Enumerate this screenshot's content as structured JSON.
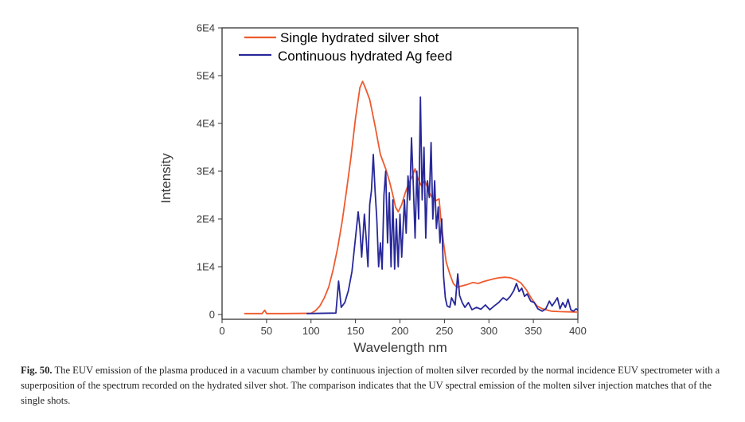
{
  "chart_data": {
    "type": "line",
    "xlabel": "Wavelength nm",
    "ylabel": "Intensity",
    "xlim": [
      0,
      400
    ],
    "ylim": [
      -1000,
      60000
    ],
    "x_ticks": [
      "0",
      "50",
      "100",
      "150",
      "200",
      "250",
      "300",
      "350",
      "400"
    ],
    "y_ticks": [
      "0",
      "1E4",
      "2E4",
      "3E4",
      "4E4",
      "5E4",
      "6E4"
    ],
    "grid": false,
    "legend_position": "top-left",
    "series": [
      {
        "name": "Single hydrated silver shot",
        "color": "#ee5a2e",
        "points": [
          [
            25,
            200
          ],
          [
            45,
            200
          ],
          [
            48,
            900
          ],
          [
            50,
            200
          ],
          [
            70,
            200
          ],
          [
            100,
            250
          ],
          [
            105,
            800
          ],
          [
            110,
            1800
          ],
          [
            115,
            3500
          ],
          [
            120,
            5800
          ],
          [
            125,
            9500
          ],
          [
            130,
            14000
          ],
          [
            135,
            19500
          ],
          [
            140,
            26000
          ],
          [
            145,
            33000
          ],
          [
            150,
            41000
          ],
          [
            155,
            47500
          ],
          [
            158,
            48800
          ],
          [
            161,
            47500
          ],
          [
            166,
            45000
          ],
          [
            172,
            39500
          ],
          [
            178,
            33500
          ],
          [
            184,
            30500
          ],
          [
            188,
            28000
          ],
          [
            192,
            25000
          ],
          [
            195,
            22500
          ],
          [
            198,
            21500
          ],
          [
            202,
            23000
          ],
          [
            206,
            25500
          ],
          [
            210,
            27500
          ],
          [
            214,
            29000
          ],
          [
            217,
            30500
          ],
          [
            220,
            28500
          ],
          [
            224,
            27000
          ],
          [
            228,
            28000
          ],
          [
            232,
            26000
          ],
          [
            236,
            24500
          ],
          [
            240,
            23800
          ],
          [
            244,
            24200
          ],
          [
            246,
            20000
          ],
          [
            249,
            15000
          ],
          [
            252,
            11000
          ],
          [
            256,
            8500
          ],
          [
            260,
            6500
          ],
          [
            264,
            5700
          ],
          [
            270,
            6000
          ],
          [
            276,
            6300
          ],
          [
            282,
            6700
          ],
          [
            288,
            6500
          ],
          [
            294,
            6900
          ],
          [
            300,
            7200
          ],
          [
            306,
            7500
          ],
          [
            312,
            7700
          ],
          [
            318,
            7800
          ],
          [
            324,
            7700
          ],
          [
            330,
            7300
          ],
          [
            336,
            6600
          ],
          [
            342,
            5200
          ],
          [
            348,
            3300
          ],
          [
            354,
            1800
          ],
          [
            360,
            1200
          ],
          [
            370,
            700
          ],
          [
            380,
            600
          ],
          [
            390,
            550
          ],
          [
            400,
            500
          ]
        ]
      },
      {
        "name": "Continuous  hydrated Ag feed",
        "color": "#28289a",
        "points": [
          [
            95,
            200
          ],
          [
            128,
            300
          ],
          [
            131,
            7000
          ],
          [
            134,
            1500
          ],
          [
            138,
            2500
          ],
          [
            142,
            5000
          ],
          [
            146,
            9000
          ],
          [
            150,
            16000
          ],
          [
            153,
            21500
          ],
          [
            155,
            18000
          ],
          [
            157,
            12000
          ],
          [
            160,
            21000
          ],
          [
            162,
            16000
          ],
          [
            164,
            10000
          ],
          [
            166,
            23000
          ],
          [
            168,
            26000
          ],
          [
            170,
            33500
          ],
          [
            172,
            26000
          ],
          [
            174,
            20000
          ],
          [
            176,
            10000
          ],
          [
            178,
            15000
          ],
          [
            180,
            9500
          ],
          [
            182,
            25000
          ],
          [
            184,
            30000
          ],
          [
            186,
            15000
          ],
          [
            188,
            25500
          ],
          [
            190,
            10000
          ],
          [
            192,
            24000
          ],
          [
            194,
            9500
          ],
          [
            196,
            20000
          ],
          [
            198,
            10000
          ],
          [
            200,
            21000
          ],
          [
            202,
            12000
          ],
          [
            205,
            24000
          ],
          [
            207,
            17000
          ],
          [
            209,
            29000
          ],
          [
            211,
            24000
          ],
          [
            213,
            37000
          ],
          [
            215,
            27000
          ],
          [
            217,
            16000
          ],
          [
            219,
            30000
          ],
          [
            221,
            20000
          ],
          [
            223,
            45500
          ],
          [
            225,
            24000
          ],
          [
            227,
            35000
          ],
          [
            229,
            16000
          ],
          [
            231,
            28000
          ],
          [
            233,
            24500
          ],
          [
            235,
            36000
          ],
          [
            237,
            20000
          ],
          [
            239,
            28000
          ],
          [
            241,
            18000
          ],
          [
            243,
            22500
          ],
          [
            245,
            15000
          ],
          [
            247,
            20000
          ],
          [
            249,
            8000
          ],
          [
            251,
            3500
          ],
          [
            253,
            1800
          ],
          [
            256,
            1500
          ],
          [
            258,
            3500
          ],
          [
            262,
            2000
          ],
          [
            265,
            8500
          ],
          [
            267,
            4000
          ],
          [
            270,
            2500
          ],
          [
            273,
            1500
          ],
          [
            277,
            2500
          ],
          [
            281,
            1000
          ],
          [
            286,
            1500
          ],
          [
            291,
            1100
          ],
          [
            296,
            2000
          ],
          [
            301,
            1000
          ],
          [
            306,
            1800
          ],
          [
            311,
            2500
          ],
          [
            316,
            3500
          ],
          [
            320,
            3000
          ],
          [
            324,
            3800
          ],
          [
            328,
            5000
          ],
          [
            331,
            6500
          ],
          [
            334,
            4800
          ],
          [
            337,
            5500
          ],
          [
            340,
            3800
          ],
          [
            343,
            4300
          ],
          [
            347,
            2800
          ],
          [
            351,
            2500
          ],
          [
            355,
            1200
          ],
          [
            360,
            700
          ],
          [
            364,
            1200
          ],
          [
            368,
            2800
          ],
          [
            371,
            1800
          ],
          [
            374,
            2600
          ],
          [
            377,
            3500
          ],
          [
            380,
            1200
          ],
          [
            383,
            2500
          ],
          [
            386,
            1500
          ],
          [
            389,
            3200
          ],
          [
            392,
            1000
          ],
          [
            395,
            700
          ],
          [
            398,
            1200
          ],
          [
            400,
            900
          ]
        ]
      }
    ]
  },
  "caption": {
    "label": "Fig. 50.",
    "text": " The EUV emission of the plasma produced in a vacuum chamber by continuous injection of molten silver recorded by the normal incidence EUV spectrometer with a superposition of the spectrum recorded on the hydrated silver shot. The comparison indicates that the UV spectral emission of the molten silver injection matches that of the single shots."
  }
}
